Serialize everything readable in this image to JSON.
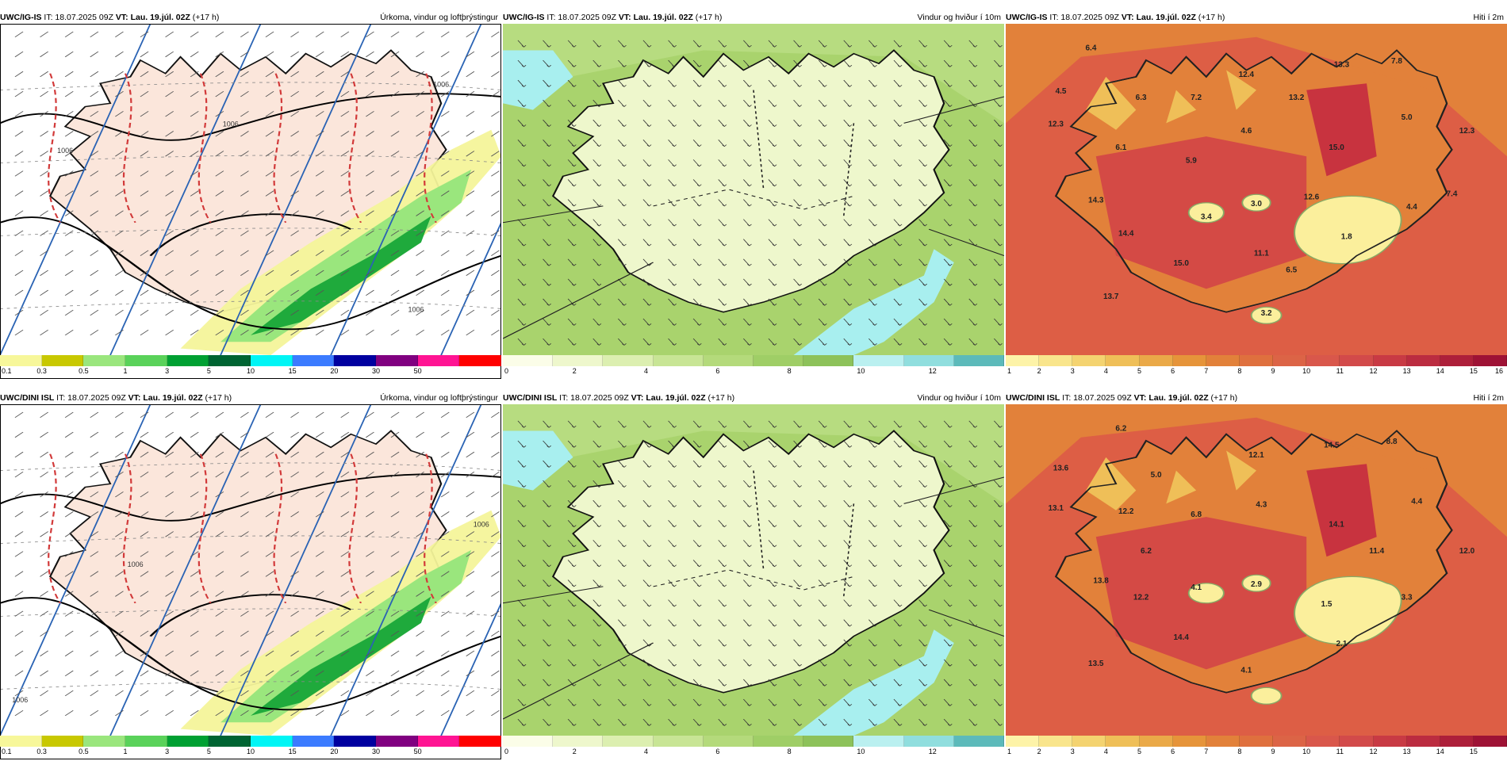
{
  "panels": [
    {
      "model": "UWC/IG-IS",
      "it": "IT: 18.07.2025 09Z",
      "vt_label": "VT:",
      "vt": "Lau. 19.júl. 02Z",
      "lead": "(+17 h)",
      "title": "Úrkoma, vindur og loftþrýstingur",
      "kind": "precip",
      "colorbar": {
        "colors": [
          "#f7f79a",
          "#c8c800",
          "#9ae67d",
          "#5ad25a",
          "#00a032",
          "#006432",
          "#00f5f5",
          "#3b7bff",
          "#0000a0",
          "#800080",
          "#ff1493",
          "#ff0000"
        ],
        "ticks": [
          "0.1",
          "0.3",
          "0.5",
          "1",
          "3",
          "5",
          "10",
          "15",
          "20",
          "30",
          "50"
        ]
      },
      "labels": [
        {
          "text": "1006"
        },
        {
          "text": "1006"
        },
        {
          "text": "1006"
        },
        {
          "text": "1006"
        }
      ]
    },
    {
      "model": "UWC/IG-IS",
      "it": "IT: 18.07.2025 09Z",
      "vt_label": "VT:",
      "vt": "Lau. 19.júl. 02Z",
      "lead": "(+17 h)",
      "title": "Vindur og hviður í 10m",
      "kind": "wind",
      "colorbar": {
        "colors": [
          "#fbfde8",
          "#eef7cc",
          "#dcefb0",
          "#c8e595",
          "#b4da7b",
          "#9fce66",
          "#8dc25a",
          "#baf0f0",
          "#90dede",
          "#5cbaba"
        ],
        "ticks": [
          "0",
          "2",
          "4",
          "6",
          "8",
          "10",
          "12"
        ]
      },
      "labels": []
    },
    {
      "model": "UWC/IG-IS",
      "it": "IT: 18.07.2025 09Z",
      "vt_label": "VT:",
      "vt": "Lau. 19.júl. 02Z",
      "lead": "(+17 h)",
      "title": "Hiti í 2m",
      "kind": "temp",
      "colorbar": {
        "colors": [
          "#fdf3a8",
          "#f9e58c",
          "#f4d370",
          "#efbf58",
          "#eaa948",
          "#e6943a",
          "#e2813a",
          "#df703e",
          "#dc6446",
          "#d9574b",
          "#d24a4a",
          "#c83a44",
          "#bb2c40",
          "#ad1f3a",
          "#9e1235"
        ],
        "ticks": [
          "1",
          "2",
          "3",
          "4",
          "5",
          "6",
          "7",
          "8",
          "9",
          "10",
          "11",
          "12",
          "13",
          "14",
          "15",
          "16"
        ]
      },
      "labels": [
        {
          "text": "6.4"
        },
        {
          "text": "4.5"
        },
        {
          "text": "6.3"
        },
        {
          "text": "12.3"
        },
        {
          "text": "6.1"
        },
        {
          "text": "7.2"
        },
        {
          "text": "12.4"
        },
        {
          "text": "13.2"
        },
        {
          "text": "13.3"
        },
        {
          "text": "7.8"
        },
        {
          "text": "5.0"
        },
        {
          "text": "12.3"
        },
        {
          "text": "4.6"
        },
        {
          "text": "15.0"
        },
        {
          "text": "5.9"
        },
        {
          "text": "14.3"
        },
        {
          "text": "3.4"
        },
        {
          "text": "3.0"
        },
        {
          "text": "12.6"
        },
        {
          "text": "4.4"
        },
        {
          "text": "7.4"
        },
        {
          "text": "14.4"
        },
        {
          "text": "1.8"
        },
        {
          "text": "11.1"
        },
        {
          "text": "15.0"
        },
        {
          "text": "6.5"
        },
        {
          "text": "13.7"
        },
        {
          "text": "3.2"
        }
      ]
    },
    {
      "model": "UWC/DINI ISL",
      "it": "IT: 18.07.2025 09Z",
      "vt_label": "VT:",
      "vt": "Lau. 19.júl. 02Z",
      "lead": "(+17 h)",
      "title": "Úrkoma, vindur og loftþrýstingur",
      "kind": "precip",
      "colorbar": {
        "colors": [
          "#f7f79a",
          "#c8c800",
          "#9ae67d",
          "#5ad25a",
          "#00a032",
          "#006432",
          "#00f5f5",
          "#3b7bff",
          "#0000a0",
          "#800080",
          "#ff1493",
          "#ff0000"
        ],
        "ticks": [
          "0.1",
          "0.3",
          "0.5",
          "1",
          "3",
          "5",
          "10",
          "15",
          "20",
          "30",
          "50"
        ]
      },
      "labels": [
        {
          "text": "1006"
        },
        {
          "text": "1006"
        },
        {
          "text": "1006"
        }
      ]
    },
    {
      "model": "UWC/DINI ISL",
      "it": "IT: 18.07.2025 09Z",
      "vt_label": "VT:",
      "vt": "Lau. 19.júl. 02Z",
      "lead": "(+17 h)",
      "title": "Vindur og hviður í 10m",
      "kind": "wind",
      "colorbar": {
        "colors": [
          "#fbfde8",
          "#eef7cc",
          "#dcefb0",
          "#c8e595",
          "#b4da7b",
          "#9fce66",
          "#8dc25a",
          "#baf0f0",
          "#90dede",
          "#5cbaba"
        ],
        "ticks": [
          "0",
          "2",
          "4",
          "6",
          "8",
          "10",
          "12"
        ]
      },
      "labels": []
    },
    {
      "model": "UWC/DINI ISL",
      "it": "IT: 18.07.2025 09Z",
      "vt_label": "VT:",
      "vt": "Lau. 19.júl. 02Z",
      "lead": "(+17 h)",
      "title": "Hiti í 2m",
      "kind": "temp",
      "colorbar": {
        "colors": [
          "#fdf3a8",
          "#f9e58c",
          "#f4d370",
          "#efbf58",
          "#eaa948",
          "#e6943a",
          "#e2813a",
          "#df703e",
          "#dc6446",
          "#d9574b",
          "#d24a4a",
          "#c83a44",
          "#bb2c40",
          "#ad1f3a",
          "#9e1235"
        ],
        "ticks": [
          "1",
          "2",
          "3",
          "4",
          "5",
          "6",
          "7",
          "8",
          "9",
          "10",
          "11",
          "12",
          "13",
          "14",
          "15"
        ]
      },
      "labels": [
        {
          "text": "6.2"
        },
        {
          "text": "13.6"
        },
        {
          "text": "5.0"
        },
        {
          "text": "13.1"
        },
        {
          "text": "12.2"
        },
        {
          "text": "12.1"
        },
        {
          "text": "14.5"
        },
        {
          "text": "8.8"
        },
        {
          "text": "4.3"
        },
        {
          "text": "6.8"
        },
        {
          "text": "4.4"
        },
        {
          "text": "14.1"
        },
        {
          "text": "6.2"
        },
        {
          "text": "12.0"
        },
        {
          "text": "11.4"
        },
        {
          "text": "13.8"
        },
        {
          "text": "4.1"
        },
        {
          "text": "2.9"
        },
        {
          "text": "3.3"
        },
        {
          "text": "12.2"
        },
        {
          "text": "1.5"
        },
        {
          "text": "14.4"
        },
        {
          "text": "2.1"
        },
        {
          "text": "13.5"
        },
        {
          "text": "4.1"
        }
      ]
    }
  ]
}
